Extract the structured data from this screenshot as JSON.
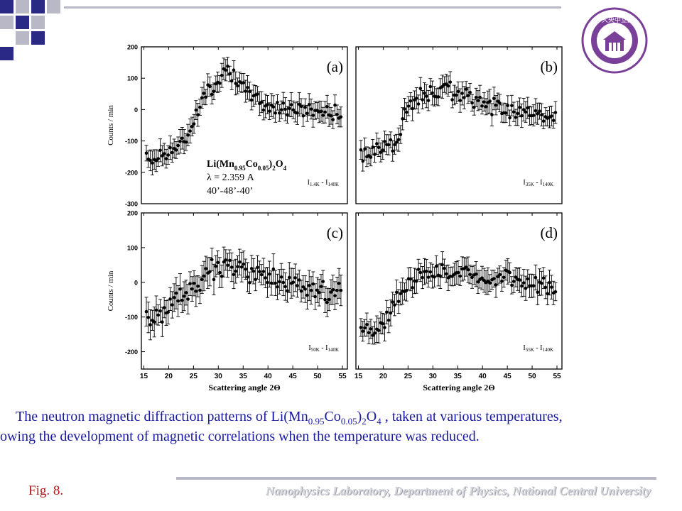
{
  "page": {
    "caption": {
      "line1_pre": "The neutron magnetic diffraction patterns of Li(Mn",
      "sub_mn": "0.95",
      "mid_co": "Co",
      "sub_co": "0.05",
      "mid_close": ")",
      "sub_2": "2",
      "mid_o": "O",
      "sub_4": "4",
      "line1_post": " , taken at various temperatures,",
      "line2": "owing the development of magnetic correlations when the temperature was reduced."
    },
    "fig_label": "Fig. 8.",
    "footer": "Nanophysics Laboratory, Department of Physics, National Central University",
    "colors": {
      "accent_blue": "#2a2a86",
      "accent_gray": "#b8b8c6",
      "caption_blue": "#1a1aa0",
      "fig_red": "#b01818",
      "logo_purple": "#7a3f98"
    },
    "logo_icon": "university-seal-icon",
    "logo_text": "學大央中立國"
  },
  "chart_data": [
    {
      "type": "scatter",
      "panel": "(a)",
      "ylabel": "Counts / min",
      "xlabel": "",
      "series_label": {
        "a": "I",
        "asub": "1.4K",
        "b": "I",
        "bsub": "140K"
      },
      "inset_text": {
        "formula": "Li(Mn0.95Co0.05)2O4",
        "wavelength": "λ = 2.359 A",
        "collimation": "40’-48’-40’"
      },
      "ylim": [
        -300,
        200
      ],
      "yticks": [
        -300,
        -200,
        -100,
        0,
        100,
        200
      ],
      "xlim": [
        14.5,
        56
      ],
      "error_bar": 30,
      "x_start": 15.5,
      "x_end": 55,
      "x_step": 0.4,
      "curve": [
        [
          15,
          -165
        ],
        [
          23,
          -110
        ],
        [
          27,
          40
        ],
        [
          32,
          140
        ],
        [
          34,
          75
        ],
        [
          40,
          10
        ],
        [
          55,
          -10
        ]
      ],
      "scatter": 22
    },
    {
      "type": "scatter",
      "panel": "(b)",
      "ylabel": "",
      "xlabel": "",
      "series_label": {
        "a": "I",
        "asub": "35K",
        "b": "I",
        "bsub": "140K"
      },
      "ylim": [
        -300,
        200
      ],
      "yticks": [],
      "xlim": [
        14.5,
        56
      ],
      "error_bar": 30,
      "x_start": 15.5,
      "x_end": 55,
      "x_step": 0.4,
      "curve": [
        [
          15,
          -150
        ],
        [
          23,
          -100
        ],
        [
          25,
          20
        ],
        [
          30,
          60
        ],
        [
          34,
          60
        ],
        [
          40,
          20
        ],
        [
          55,
          -30
        ]
      ],
      "scatter": 25
    },
    {
      "type": "scatter",
      "panel": "(c)",
      "ylabel": "Counts / min",
      "xlabel": "Scattering angle 2Θ",
      "series_label": {
        "a": "I",
        "asub": "50K",
        "b": "I",
        "bsub": "140K"
      },
      "ylim": [
        -250,
        200
      ],
      "yticks": [
        -200,
        -100,
        0,
        100,
        200
      ],
      "xlim": [
        14.5,
        56
      ],
      "xticks": [
        15,
        20,
        25,
        30,
        35,
        40,
        45,
        50,
        55
      ],
      "error_bar": 35,
      "x_start": 15.5,
      "x_end": 55,
      "x_step": 0.4,
      "curve": [
        [
          15,
          -120
        ],
        [
          20,
          -80
        ],
        [
          25,
          0
        ],
        [
          30,
          40
        ],
        [
          35,
          30
        ],
        [
          40,
          10
        ],
        [
          47,
          -20
        ],
        [
          55,
          -30
        ]
      ],
      "scatter": 30
    },
    {
      "type": "scatter",
      "panel": "(d)",
      "ylabel": "",
      "xlabel": "Scattering angle 2Θ",
      "series_label": {
        "a": "I",
        "asub": "55K",
        "b": "I",
        "bsub": "140K"
      },
      "ylim": [
        -250,
        200
      ],
      "yticks": [],
      "xlim": [
        14.5,
        56
      ],
      "xticks": [
        15,
        20,
        25,
        30,
        35,
        40,
        45,
        50,
        55
      ],
      "error_bar": 30,
      "x_start": 15.5,
      "x_end": 55,
      "x_step": 0.4,
      "curve": [
        [
          15,
          -150
        ],
        [
          20,
          -120
        ],
        [
          24,
          -20
        ],
        [
          28,
          30
        ],
        [
          35,
          30
        ],
        [
          45,
          10
        ],
        [
          55,
          -20
        ]
      ],
      "scatter": 22
    }
  ]
}
